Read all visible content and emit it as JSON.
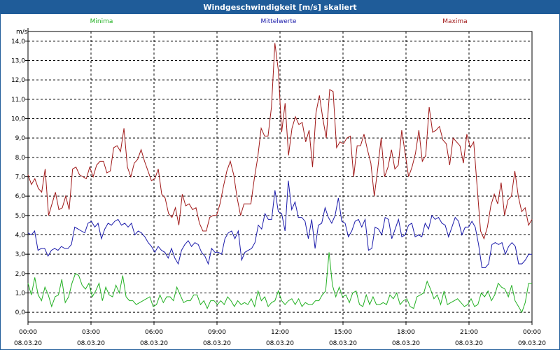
{
  "window": {
    "title": "Windgeschwindigkeit [m/s] skaliert"
  },
  "colors": {
    "titlebar": "#1f5c99",
    "minima": "#22b022",
    "mittelwerte": "#1a1aaa",
    "maxima": "#a01818"
  },
  "chart_data": {
    "type": "line",
    "ylabel": "m/s",
    "ylim": [
      -0.5,
      14.5
    ],
    "yticks": [
      "0,0",
      "1,0",
      "2,0",
      "3,0",
      "4,0",
      "5,0",
      "6,0",
      "7,0",
      "8,0",
      "9,0",
      "10,0",
      "11,0",
      "12,0",
      "13,0",
      "14,0"
    ],
    "xrange_hours": [
      0,
      24
    ],
    "xticks": [
      {
        "hour": 0,
        "time": "00:00",
        "date": "08.03.20"
      },
      {
        "hour": 3,
        "time": "03:00",
        "date": "08.03.20"
      },
      {
        "hour": 6,
        "time": "06:00",
        "date": "08.03.20"
      },
      {
        "hour": 9,
        "time": "09:00",
        "date": "08.03.20"
      },
      {
        "hour": 12,
        "time": "12:00",
        "date": "08.03.20"
      },
      {
        "hour": 15,
        "time": "15:00",
        "date": "08.03.20"
      },
      {
        "hour": 18,
        "time": "18:00",
        "date": "08.03.20"
      },
      {
        "hour": 21,
        "time": "21:00",
        "date": "08.03.20"
      },
      {
        "hour": 24,
        "time": "00:00",
        "date": "09.03.20"
      }
    ],
    "grid": true,
    "legend_position": "top",
    "series": [
      {
        "name": "Maxima",
        "values": [
          7.1,
          6.6,
          6.9,
          6.4,
          6.2,
          7.4,
          5.0,
          5.6,
          6.2,
          5.3,
          5.4,
          6.0,
          5.3,
          7.4,
          7.5,
          7.1,
          7.0,
          6.9,
          7.5,
          7.0,
          7.6,
          7.8,
          7.8,
          7.2,
          7.3,
          8.5,
          8.6,
          8.3,
          9.5,
          7.5,
          7.0,
          7.7,
          7.9,
          8.4,
          7.8,
          7.3,
          6.8,
          6.9,
          7.4,
          6.1,
          5.9,
          5.1,
          4.9,
          5.4,
          4.5,
          6.1,
          5.5,
          5.6,
          5.3,
          5.4,
          4.6,
          4.2,
          4.2,
          4.9,
          5.0,
          5.0,
          5.6,
          6.5,
          7.3,
          7.8,
          7.1,
          5.9,
          5.0,
          5.6,
          5.6,
          5.6,
          6.9,
          8.0,
          9.5,
          9.1,
          9.1,
          10.6,
          13.9,
          12.5,
          9.3,
          10.8,
          8.1,
          9.5,
          10.1,
          9.7,
          9.8,
          8.8,
          9.4,
          7.5,
          10.3,
          11.2,
          10.0,
          9.0,
          11.5,
          11.4,
          8.5,
          8.8,
          8.7,
          9.0,
          9.1,
          7.0,
          8.6,
          8.6,
          9.2,
          8.4,
          7.7,
          6.0,
          7.4,
          9.0,
          7.0,
          7.5,
          8.4,
          7.4,
          7.6,
          9.4,
          8.2,
          7.0,
          7.5,
          8.2,
          9.4,
          7.8,
          8.1,
          10.6,
          9.3,
          9.4,
          9.6,
          8.9,
          8.7,
          7.6,
          9.0,
          8.8,
          8.6,
          7.7,
          9.2,
          8.5,
          8.8,
          6.5,
          4.2,
          3.8,
          4.4,
          5.5,
          6.1,
          5.6,
          6.7,
          5.0,
          5.8,
          6.0,
          7.3,
          6.0,
          5.2,
          5.4,
          4.5,
          4.8
        ]
      },
      {
        "name": "Mittelwerte",
        "values": [
          4.1,
          4.0,
          4.2,
          3.2,
          3.3,
          3.3,
          2.9,
          3.2,
          3.3,
          3.2,
          3.4,
          3.3,
          3.3,
          3.5,
          4.4,
          4.3,
          4.2,
          4.1,
          4.6,
          4.7,
          4.4,
          4.6,
          3.8,
          4.3,
          4.6,
          4.5,
          4.7,
          4.8,
          4.5,
          4.6,
          4.4,
          4.6,
          4.0,
          4.2,
          4.1,
          3.9,
          3.6,
          3.4,
          3.1,
          3.4,
          3.2,
          3.1,
          2.8,
          3.3,
          2.8,
          2.5,
          3.2,
          3.5,
          3.7,
          3.4,
          3.6,
          3.5,
          3.1,
          2.9,
          2.5,
          3.3,
          3.1,
          3.1,
          3.0,
          3.8,
          4.1,
          4.2,
          3.8,
          4.2,
          2.7,
          3.1,
          3.2,
          3.3,
          3.6,
          4.5,
          4.3,
          5.1,
          4.8,
          4.8,
          6.3,
          5.2,
          5.1,
          4.2,
          6.8,
          5.3,
          5.7,
          4.9,
          4.9,
          4.7,
          3.8,
          4.8,
          3.3,
          4.5,
          4.6,
          5.4,
          4.9,
          4.6,
          5.0,
          5.9,
          4.7,
          4.6,
          3.9,
          4.2,
          4.7,
          4.8,
          4.4,
          4.8,
          3.2,
          3.3,
          4.4,
          4.3,
          4.0,
          4.9,
          4.8,
          3.8,
          4.3,
          4.8,
          3.9,
          4.0,
          4.5,
          4.6,
          3.9,
          4.0,
          3.9,
          4.6,
          4.3,
          5.0,
          4.8,
          4.9,
          4.6,
          4.5,
          3.9,
          4.4,
          4.9,
          4.7,
          4.0,
          4.4,
          4.4,
          4.7,
          4.4,
          3.5,
          2.3,
          2.3,
          2.5,
          3.5,
          3.6,
          3.5,
          3.6,
          3.0,
          3.4,
          3.6,
          3.4,
          2.5,
          2.5,
          2.7,
          3.0,
          3.0
        ]
      },
      {
        "name": "Minima",
        "values": [
          1.5,
          0.9,
          1.8,
          0.9,
          0.6,
          1.3,
          0.9,
          0.3,
          0.8,
          0.9,
          1.7,
          0.5,
          0.8,
          1.5,
          2.0,
          1.9,
          1.4,
          1.2,
          1.5,
          0.8,
          1.1,
          1.5,
          0.6,
          1.3,
          0.9,
          0.8,
          1.4,
          1.0,
          1.9,
          0.8,
          0.6,
          0.6,
          0.4,
          0.5,
          0.6,
          0.7,
          0.8,
          0.3,
          0.4,
          0.9,
          0.5,
          0.8,
          0.8,
          0.6,
          1.3,
          0.9,
          0.5,
          0.6,
          0.6,
          0.9,
          0.9,
          0.4,
          0.6,
          0.2,
          0.6,
          0.6,
          0.4,
          0.6,
          0.4,
          0.8,
          0.6,
          0.3,
          0.6,
          0.4,
          0.5,
          0.4,
          0.7,
          0.3,
          1.1,
          0.6,
          0.8,
          0.3,
          0.5,
          0.6,
          1.1,
          0.6,
          0.4,
          0.6,
          0.7,
          0.4,
          0.7,
          0.3,
          0.5,
          0.4,
          0.4,
          0.6,
          0.6,
          0.9,
          1.1,
          3.1,
          1.4,
          0.8,
          1.3,
          0.8,
          0.9,
          0.5,
          1.0,
          1.1,
          0.4,
          0.3,
          0.9,
          0.4,
          0.8,
          0.4,
          0.4,
          0.5,
          0.4,
          0.9,
          0.7,
          1.0,
          0.4,
          0.6,
          0.7,
          0.3,
          0.2,
          0.8,
          0.9,
          1.0,
          1.6,
          1.2,
          0.7,
          0.9,
          0.4,
          1.1,
          0.4,
          0.5,
          0.6,
          0.7,
          0.5,
          0.3,
          0.4,
          0.7,
          0.3,
          0.4,
          1.0,
          0.8,
          1.1,
          0.6,
          0.9,
          1.5,
          1.3,
          1.2,
          0.8,
          1.4,
          0.6,
          0.3,
          0.0,
          0.5,
          1.5,
          1.5
        ]
      }
    ]
  }
}
